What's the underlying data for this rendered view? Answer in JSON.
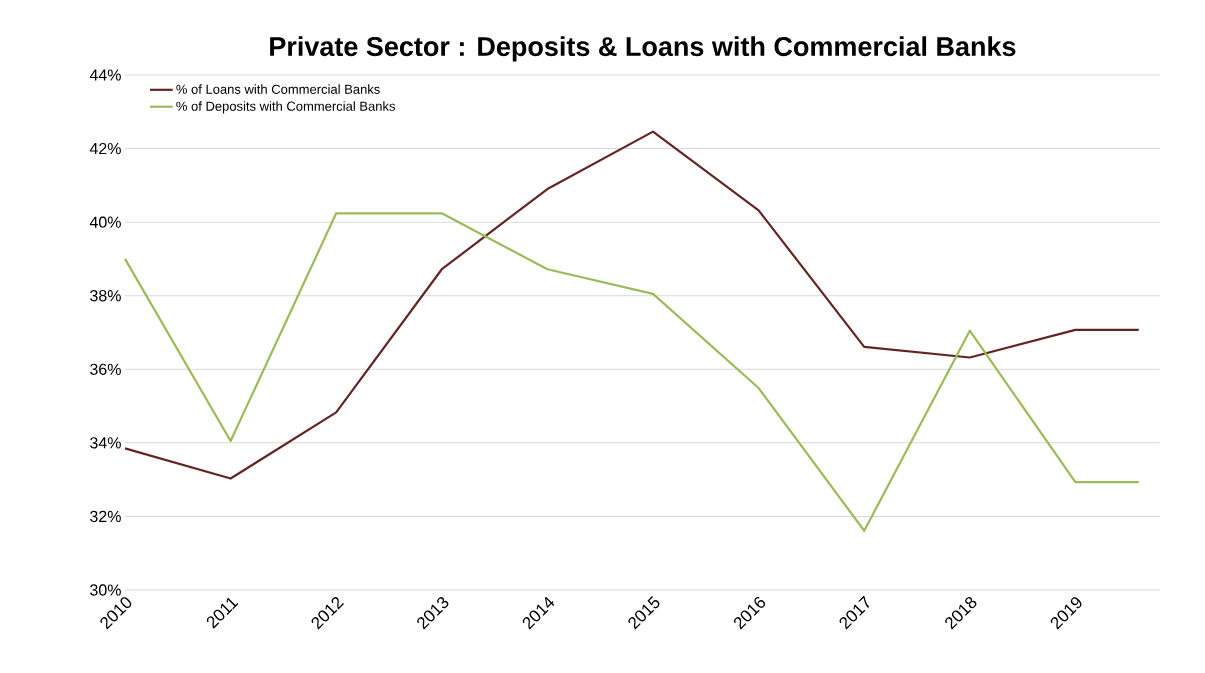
{
  "chart_data": {
    "type": "line",
    "title": "Private Sector : Deposits & Loans with Commercial  Banks",
    "x": [
      2010,
      2011,
      2012,
      2013,
      2014,
      2015,
      2016,
      2017,
      2018,
      2019,
      2019.6
    ],
    "series": [
      {
        "name": "% of Loans with Commercial Banks",
        "color": "#632523",
        "values": [
          33.85,
          33.03,
          34.83,
          38.72,
          40.9,
          42.46,
          40.32,
          36.61,
          36.32,
          37.07,
          37.07
        ]
      },
      {
        "name": "% of Deposits with Commercial  Banks",
        "color": "#9bbb59",
        "values": [
          39.0,
          34.05,
          40.24,
          40.24,
          38.72,
          38.05,
          35.49,
          31.61,
          37.05,
          32.93,
          32.93
        ]
      }
    ],
    "xlim": [
      2010,
      2019.8
    ],
    "xticks": [
      2010,
      2011,
      2012,
      2013,
      2014,
      2015,
      2016,
      2017,
      2018,
      2019
    ],
    "ylim": [
      30,
      44
    ],
    "yticks": [
      {
        "value": 30,
        "label": "30%"
      },
      {
        "value": 32,
        "label": "32%"
      },
      {
        "value": 34,
        "label": "34%"
      },
      {
        "value": 36,
        "label": "36%"
      },
      {
        "value": 38,
        "label": "38%"
      },
      {
        "value": 40,
        "label": "40%"
      },
      {
        "value": 42,
        "label": "42%"
      },
      {
        "value": 44,
        "label": "44%"
      }
    ],
    "grid": "y",
    "legend": "top left",
    "marker": "none",
    "line_style": "solid"
  }
}
